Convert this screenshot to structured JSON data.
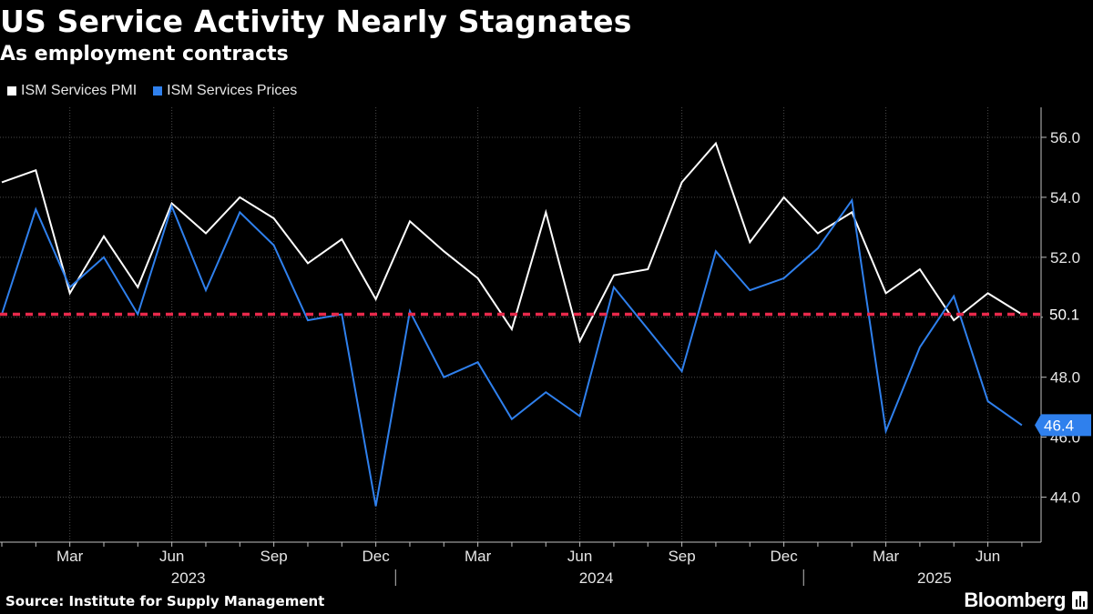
{
  "header": {
    "title": "US Service Activity Nearly Stagnates",
    "subtitle": "As employment contracts"
  },
  "footer": {
    "source": "Source: Institute for Supply Management",
    "brand": "Bloomberg"
  },
  "chart_data": {
    "type": "line",
    "x": [
      "2023-01",
      "2023-02",
      "2023-03",
      "2023-04",
      "2023-05",
      "2023-06",
      "2023-07",
      "2023-08",
      "2023-09",
      "2023-10",
      "2023-11",
      "2023-12",
      "2024-01",
      "2024-02",
      "2024-03",
      "2024-04",
      "2024-05",
      "2024-06",
      "2024-07",
      "2024-08",
      "2024-09",
      "2024-10",
      "2024-11",
      "2024-12",
      "2025-01",
      "2025-02",
      "2025-03",
      "2025-04",
      "2025-05",
      "2025-06",
      "2025-07"
    ],
    "series": [
      {
        "name": "ISM Services PMI",
        "color": "#ffffff",
        "values": [
          54.5,
          54.9,
          50.8,
          52.7,
          51.0,
          53.8,
          52.8,
          54.0,
          53.3,
          51.8,
          52.6,
          50.6,
          53.2,
          52.2,
          51.3,
          49.6,
          53.5,
          49.2,
          51.4,
          51.6,
          54.5,
          55.8,
          52.5,
          54.0,
          52.8,
          53.5,
          50.8,
          51.6,
          49.9,
          50.8,
          50.1
        ]
      },
      {
        "name": "ISM Services Prices",
        "color": "#2f80ed",
        "values": [
          50.1,
          53.6,
          51.0,
          52.0,
          50.1,
          53.7,
          50.9,
          53.5,
          52.4,
          49.9,
          50.1,
          43.7,
          50.2,
          48.0,
          48.5,
          46.6,
          47.5,
          46.7,
          51.0,
          49.6,
          48.2,
          52.2,
          50.9,
          51.3,
          52.3,
          53.9,
          46.2,
          49.0,
          50.7,
          47.2,
          46.4
        ]
      }
    ],
    "reference_line": {
      "value": 50.1,
      "color": "#e8294b",
      "style": "dashed"
    },
    "last_value_labels": [
      {
        "series": "ISM Services PMI",
        "label": "50.1"
      },
      {
        "series": "ISM Services Prices",
        "label": "46.4"
      }
    ],
    "y_axis": {
      "position": "right",
      "ticks": [
        44,
        46,
        48,
        50,
        52,
        54,
        56
      ],
      "tick_labels": [
        "44.0",
        "46.0",
        "48.0",
        "50.0",
        "52.0",
        "54.0",
        "56.0"
      ],
      "ylim": [
        42.5,
        57
      ]
    },
    "x_axis": {
      "month_ticks": [
        {
          "x": "2023-03",
          "label": "Mar"
        },
        {
          "x": "2023-06",
          "label": "Jun"
        },
        {
          "x": "2023-09",
          "label": "Sep"
        },
        {
          "x": "2023-12",
          "label": "Dec"
        },
        {
          "x": "2024-03",
          "label": "Mar"
        },
        {
          "x": "2024-06",
          "label": "Jun"
        },
        {
          "x": "2024-09",
          "label": "Sep"
        },
        {
          "x": "2024-12",
          "label": "Dec"
        },
        {
          "x": "2025-03",
          "label": "Mar"
        },
        {
          "x": "2025-06",
          "label": "Jun"
        }
      ],
      "year_labels": [
        {
          "x": "2023-06",
          "label": "2023"
        },
        {
          "x": "2024-06",
          "label": "2024"
        },
        {
          "x": "2025-04",
          "label": "2025"
        }
      ]
    },
    "grid": true,
    "legend_position": "top-left",
    "title": "US Service Activity Nearly Stagnates",
    "subtitle": "As employment contracts"
  }
}
